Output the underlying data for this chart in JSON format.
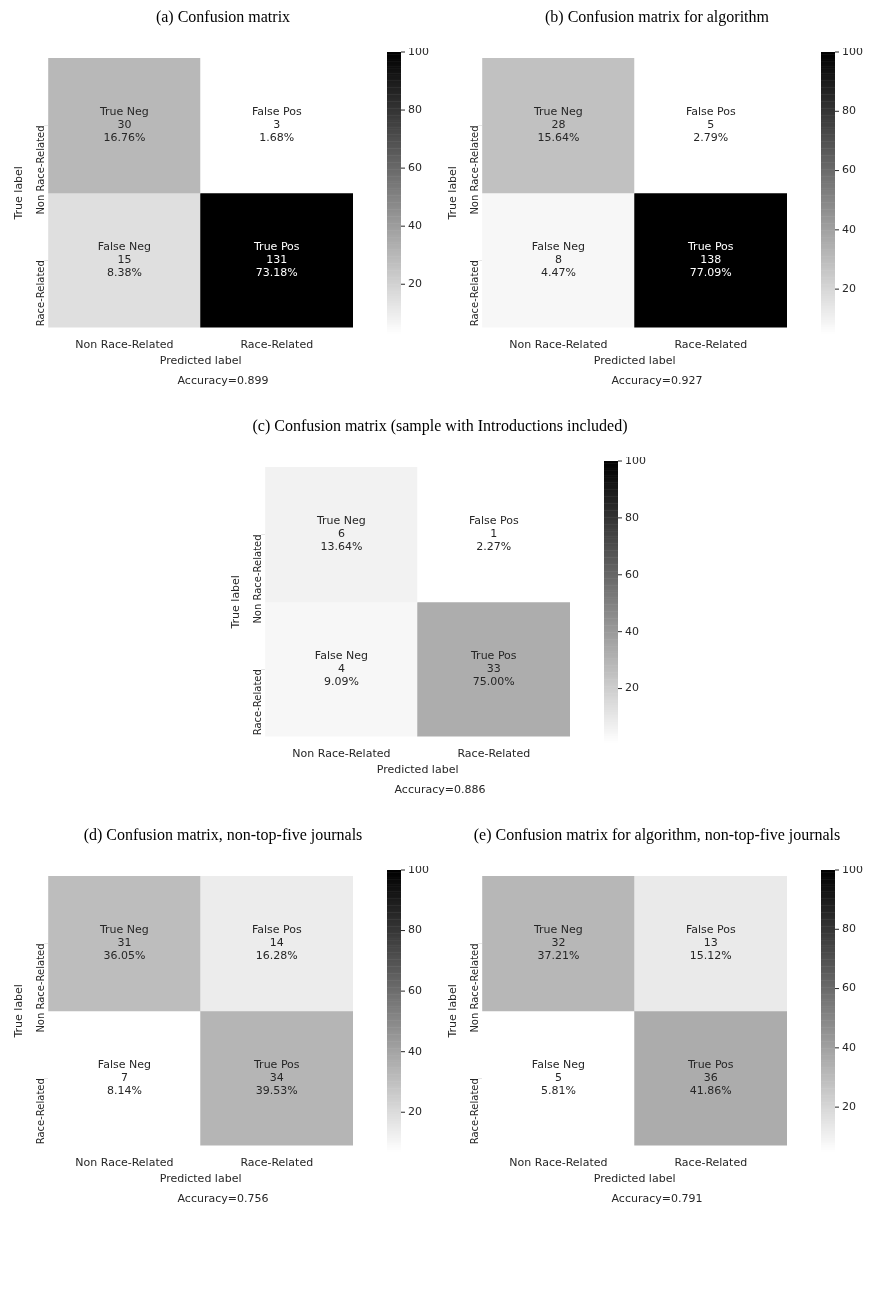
{
  "chart_data": [
    {
      "type": "heatmap",
      "title": "(a) Confusion matrix",
      "xlabel": "Predicted label",
      "ylabel": "True label",
      "categories": [
        "Non Race-Related",
        "Race-Related"
      ],
      "y_categories": [
        "Non Race-Related",
        "Race-Related"
      ],
      "cells": [
        [
          30,
          3
        ],
        [
          15,
          131
        ]
      ],
      "cell_labels": [
        [
          "True Neg\n30\n16.76%",
          "False Pos\n3\n1.68%"
        ],
        [
          "False Neg\n15\n8.38%",
          "True Pos\n131\n73.18%"
        ]
      ],
      "clim": [
        3,
        100
      ],
      "cticks": [
        20,
        40,
        60,
        80,
        100
      ],
      "annotations": [
        "Accuracy=0.899"
      ]
    },
    {
      "type": "heatmap",
      "title": "(b) Confusion matrix for algorithm",
      "xlabel": "Predicted label",
      "ylabel": "True label",
      "categories": [
        "Non Race-Related",
        "Race-Related"
      ],
      "y_categories": [
        "Non Race-Related",
        "Race-Related"
      ],
      "cells": [
        [
          28,
          5
        ],
        [
          8,
          138
        ]
      ],
      "cell_labels": [
        [
          "True Neg\n28\n15.64%",
          "False Pos\n5\n2.79%"
        ],
        [
          "False Neg\n8\n4.47%",
          "True Pos\n138\n77.09%"
        ]
      ],
      "clim": [
        5,
        100
      ],
      "cticks": [
        20,
        40,
        60,
        80,
        100
      ],
      "annotations": [
        "Accuracy=0.927"
      ]
    },
    {
      "type": "heatmap",
      "title": "(c) Confusion matrix (sample with Introductions included)",
      "xlabel": "Predicted label",
      "ylabel": "True label",
      "categories": [
        "Non Race-Related",
        "Race-Related"
      ],
      "y_categories": [
        "Non Race-Related",
        "Race-Related"
      ],
      "cells": [
        [
          6,
          1
        ],
        [
          4,
          33
        ]
      ],
      "cell_labels": [
        [
          "True Neg\n6\n13.64%",
          "False Pos\n1\n2.27%"
        ],
        [
          "False Neg\n4\n9.09%",
          "True Pos\n33\n75.00%"
        ]
      ],
      "clim": [
        1,
        100
      ],
      "cticks": [
        20,
        40,
        60,
        80,
        100
      ],
      "annotations": [
        "Accuracy=0.886"
      ]
    },
    {
      "type": "heatmap",
      "title": "(d) Confusion matrix, non-top-five journals",
      "xlabel": "Predicted label",
      "ylabel": "True label",
      "categories": [
        "Non Race-Related",
        "Race-Related"
      ],
      "y_categories": [
        "Non Race-Related",
        "Race-Related"
      ],
      "cells": [
        [
          31,
          14
        ],
        [
          7,
          34
        ]
      ],
      "cell_labels": [
        [
          "True Neg\n31\n36.05%",
          "False Pos\n14\n16.28%"
        ],
        [
          "False Neg\n7\n8.14%",
          "True Pos\n34\n39.53%"
        ]
      ],
      "clim": [
        7,
        100
      ],
      "cticks": [
        20,
        40,
        60,
        80,
        100
      ],
      "annotations": [
        "Accuracy=0.756"
      ]
    },
    {
      "type": "heatmap",
      "title": "(e) Confusion matrix for algorithm, non-top-five journals",
      "xlabel": "Predicted label",
      "ylabel": "True label",
      "categories": [
        "Non Race-Related",
        "Race-Related"
      ],
      "y_categories": [
        "Non Race-Related",
        "Race-Related"
      ],
      "cells": [
        [
          32,
          13
        ],
        [
          5,
          36
        ]
      ],
      "cell_labels": [
        [
          "True Neg\n32\n37.21%",
          "False Pos\n13\n15.12%"
        ],
        [
          "False Neg\n5\n5.81%",
          "True Pos\n36\n41.86%"
        ]
      ],
      "clim": [
        5,
        100
      ],
      "cticks": [
        20,
        40,
        60,
        80,
        100
      ],
      "annotations": [
        "Accuracy=0.791"
      ]
    }
  ]
}
